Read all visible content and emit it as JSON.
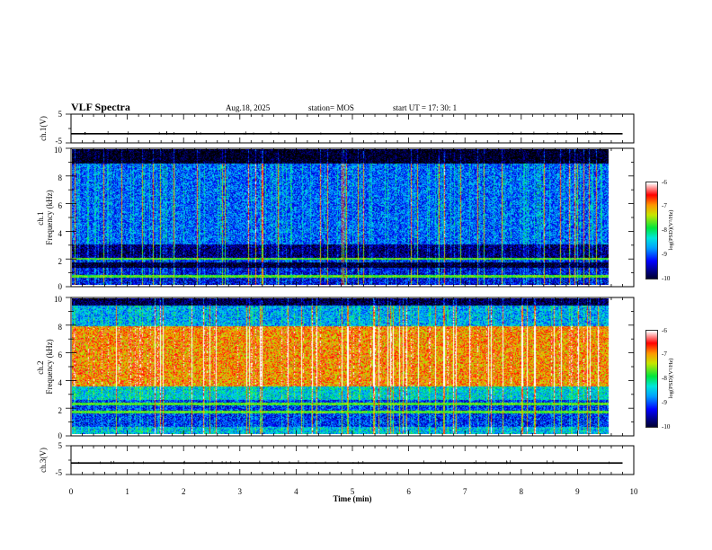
{
  "header": {
    "title": "VLF Spectra",
    "date": "Aug.18, 2025",
    "station": "station= MOS",
    "start_time": "start  UT  =   17: 30: 1"
  },
  "chart_data": [
    {
      "id": "ch1-waveform",
      "type": "line",
      "ylabel": "ch.1(V)",
      "ylim": [
        -5,
        5
      ],
      "yticks": [
        5,
        -5
      ],
      "x": [
        0,
        1,
        2,
        3,
        4,
        5,
        6,
        7,
        8,
        9,
        9.8
      ],
      "values": [
        -1.8,
        -1.8,
        -1.8,
        -1.8,
        -1.8,
        -1.8,
        -1.8,
        -1.8,
        -1.8,
        -1.8,
        -1.8
      ]
    },
    {
      "id": "ch1-spectrogram",
      "type": "heatmap",
      "ylabel": "ch.1\nFrequency (kHz)",
      "ylim": [
        0,
        10
      ],
      "yticks": [
        0,
        2,
        4,
        6,
        8,
        10
      ],
      "xlim": [
        0,
        10
      ],
      "data_end_min": 9.8,
      "colorbar": {
        "label": "log(PSD)(V²/Hz)",
        "range": [
          -10,
          -6
        ],
        "ticks": [
          "-6",
          "-7",
          "-8",
          "-9",
          "-10"
        ]
      },
      "bands": [
        {
          "from_khz": 9.0,
          "to_khz": 10.0,
          "level": -10.0
        },
        {
          "from_khz": 3.0,
          "to_khz": 9.0,
          "level": -8.8
        },
        {
          "from_khz": 2.0,
          "to_khz": 3.0,
          "level": -9.6
        },
        {
          "from_khz": 1.6,
          "to_khz": 2.0,
          "level": -9.0
        },
        {
          "from_khz": 1.2,
          "to_khz": 1.6,
          "level": -9.9
        },
        {
          "from_khz": 0.0,
          "to_khz": 1.2,
          "level": -9.2
        }
      ],
      "lines_khz": [
        0.6,
        1.9
      ]
    },
    {
      "id": "ch2-spectrogram",
      "type": "heatmap",
      "ylabel": "ch.2\nFrequency (kHz)",
      "ylim": [
        0,
        10
      ],
      "yticks": [
        0,
        2,
        4,
        6,
        8,
        10
      ],
      "xlim": [
        0,
        10
      ],
      "data_end_min": 9.8,
      "colorbar": {
        "label": "log(PSD)(V²/Hz)",
        "range": [
          -10,
          -6
        ],
        "ticks": [
          "-6",
          "-7",
          "-8",
          "-9",
          "-10"
        ]
      },
      "bands": [
        {
          "from_khz": 9.5,
          "to_khz": 10.0,
          "level": -9.8
        },
        {
          "from_khz": 8.0,
          "to_khz": 9.5,
          "level": -8.5
        },
        {
          "from_khz": 3.5,
          "to_khz": 8.0,
          "level": -6.9
        },
        {
          "from_khz": 2.5,
          "to_khz": 3.5,
          "level": -8.3
        },
        {
          "from_khz": 0.5,
          "to_khz": 2.5,
          "level": -9.0
        },
        {
          "from_khz": 0.0,
          "to_khz": 0.5,
          "level": -8.4
        }
      ],
      "lines_khz": [
        1.6,
        2.2
      ]
    },
    {
      "id": "ch3-waveform",
      "type": "line",
      "ylabel": "ch.3(V)",
      "ylim": [
        -5,
        5
      ],
      "yticks": [
        5,
        -5
      ],
      "x": [
        0,
        1,
        2,
        3,
        4,
        5,
        6,
        7,
        8,
        9,
        9.8
      ],
      "values": [
        -1.0,
        -1.0,
        -1.0,
        -1.0,
        -1.0,
        -1.0,
        -1.0,
        -1.0,
        -1.0,
        -1.0,
        -1.0
      ]
    }
  ],
  "x_axis": {
    "label": "Time  (min)",
    "xlim": [
      0,
      10
    ],
    "ticks": [
      "0",
      "1",
      "2",
      "3",
      "4",
      "5",
      "6",
      "7",
      "8",
      "9",
      "10"
    ]
  }
}
